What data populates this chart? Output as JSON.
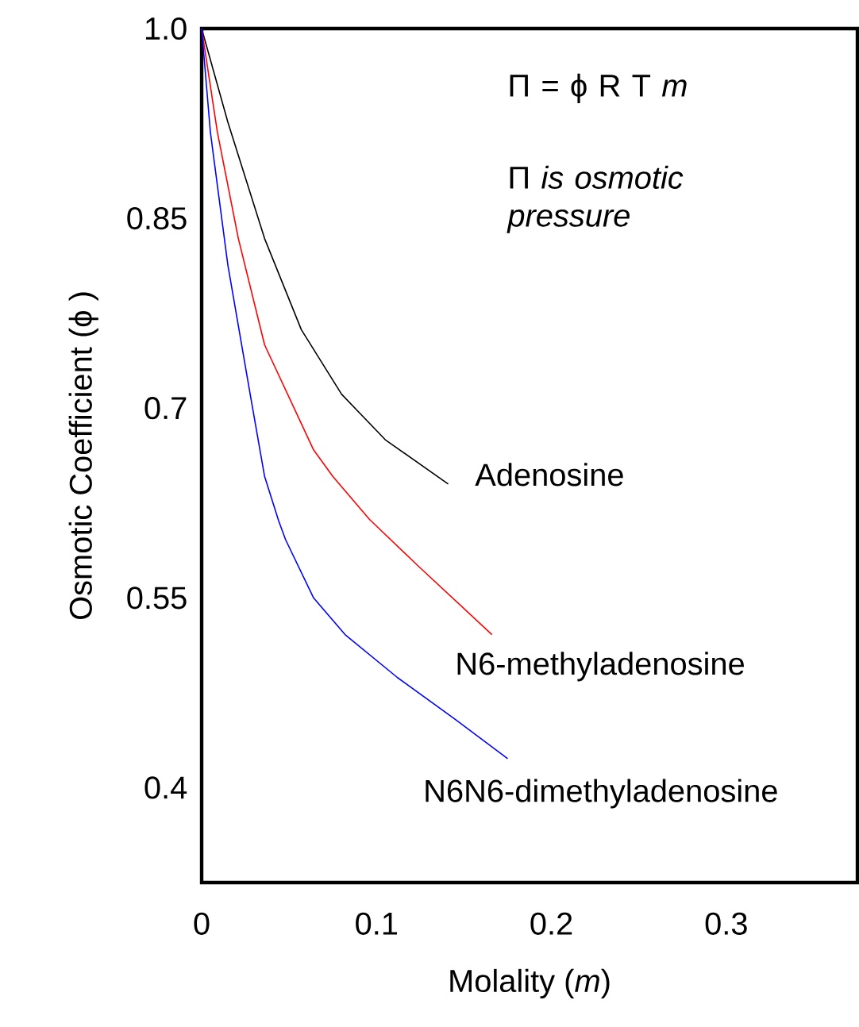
{
  "chart_data": {
    "type": "line",
    "xlabel": "Molality (*m*)",
    "ylabel": "Osmotic Coefficient (ϕ )",
    "xlim": [
      0,
      0.375
    ],
    "ylim": [
      0.325,
      1.0
    ],
    "xticks": [
      0,
      0.1,
      0.2,
      0.3
    ],
    "yticks": [
      {
        "value": 1.0,
        "label": "1.0"
      },
      0.85,
      0.7,
      0.55,
      0.4
    ],
    "annotations": [
      "Π = ϕ R T *m*",
      "Π *is osmotic pressure*"
    ],
    "marker": "none",
    "line_style": "solid",
    "series": [
      {
        "name": "Adenosine",
        "color": "#000000",
        "x": [
          0,
          0.015,
          0.036,
          0.057,
          0.08,
          0.105,
          0.141
        ],
        "values": [
          1.0,
          0.926,
          0.834,
          0.762,
          0.711,
          0.675,
          0.64
        ]
      },
      {
        "name": "N6-methyladenosine",
        "color": "#ff0000",
        "x": [
          0,
          0.009,
          0.021,
          0.036,
          0.064,
          0.075,
          0.096,
          0.124,
          0.166
        ],
        "values": [
          1.0,
          0.918,
          0.834,
          0.75,
          0.667,
          0.646,
          0.612,
          0.575,
          0.521
        ]
      },
      {
        "name": "N6N6-dimethyladenosine",
        "color": "#0000ff",
        "x": [
          0,
          0.005,
          0.015,
          0.028,
          0.036,
          0.044,
          0.048,
          0.064,
          0.082,
          0.112,
          0.145,
          0.175
        ],
        "values": [
          1.0,
          0.918,
          0.813,
          0.709,
          0.646,
          0.611,
          0.596,
          0.55,
          0.521,
          0.487,
          0.454,
          0.423
        ]
      }
    ]
  }
}
